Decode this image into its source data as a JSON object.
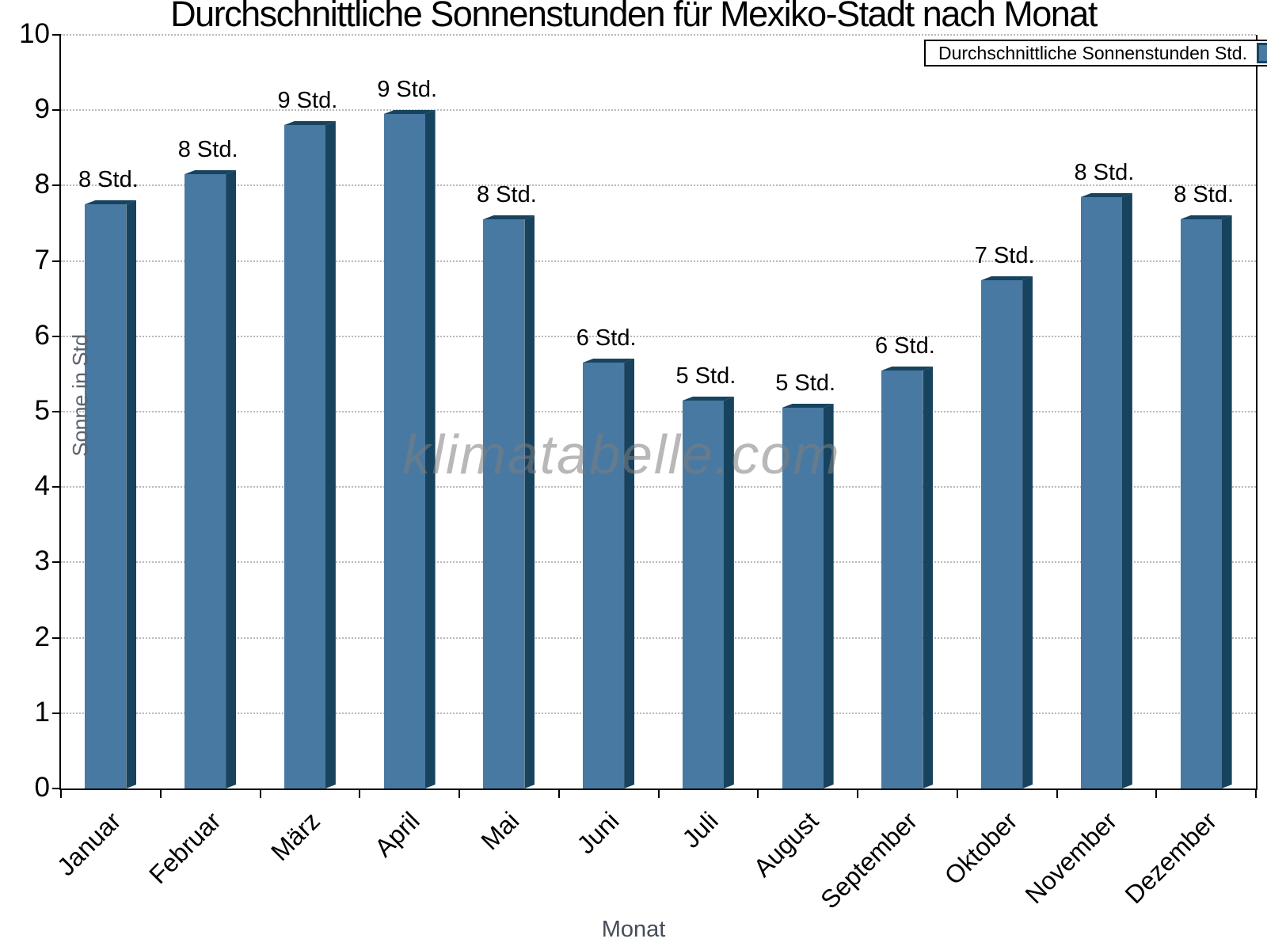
{
  "chart": {
    "title": "Durchschnittliche Sonnenstunden für Mexiko-Stadt nach Monat",
    "watermark": "klimatabelle.com",
    "xlabel": "Monat",
    "ylabel": "Sonne in Std."
  },
  "chart_data": {
    "type": "bar",
    "title": "Durchschnittliche Sonnenstunden für Mexiko-Stadt nach Monat",
    "categories": [
      "Januar",
      "Februar",
      "März",
      "April",
      "Mai",
      "Juni",
      "Juli",
      "August",
      "September",
      "Oktober",
      "November",
      "Dezember"
    ],
    "values": [
      7.8,
      8.2,
      8.85,
      9.0,
      7.6,
      5.7,
      5.2,
      5.1,
      5.6,
      6.8,
      7.9,
      7.6
    ],
    "bar_labels": [
      "8 Std.",
      "8 Std.",
      "9 Std.",
      "9 Std.",
      "8 Std.",
      "6 Std.",
      "5 Std.",
      "5 Std.",
      "6 Std.",
      "7 Std.",
      "8 Std.",
      "8 Std."
    ],
    "xlabel": "Monat",
    "ylabel": "Sonne in Std.",
    "ylim": [
      0,
      10
    ],
    "ytick_step": 1,
    "yticks": [
      "0",
      "1",
      "2",
      "3",
      "4",
      "5",
      "6",
      "7",
      "8",
      "9",
      "10"
    ],
    "grid": "horizontal-dotted",
    "legend": {
      "label": "Durchschnittliche Sonnenstunden Std.",
      "position": "top-right"
    },
    "colors": {
      "bar_fill": "#4879A2",
      "bar_shade": "#17435F",
      "grid": "#b9b9b9",
      "axis": "#000000",
      "axis_title": "#5b6570",
      "watermark": "#7d7d7d"
    }
  }
}
